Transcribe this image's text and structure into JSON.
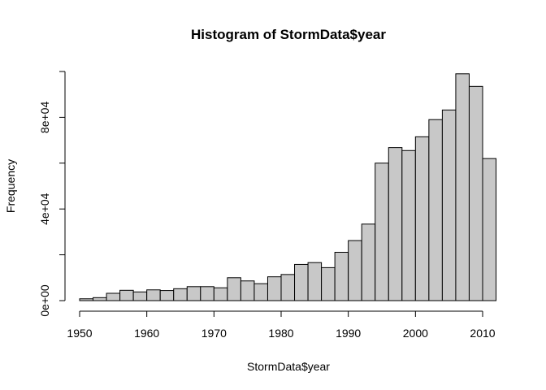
{
  "chart_data": {
    "type": "bar",
    "title": "Histogram of StormData$year",
    "xlabel": "StormData$year",
    "ylabel": "Frequency",
    "bin_width": 2,
    "bin_starts": [
      1950,
      1952,
      1954,
      1956,
      1958,
      1960,
      1962,
      1964,
      1966,
      1968,
      1970,
      1972,
      1974,
      1976,
      1978,
      1980,
      1982,
      1984,
      1986,
      1988,
      1990,
      1992,
      1994,
      1996,
      1998,
      2000,
      2002,
      2004,
      2006,
      2008,
      2010
    ],
    "values": [
      800,
      1300,
      3200,
      4500,
      3800,
      4700,
      4400,
      5200,
      6100,
      6100,
      5600,
      10000,
      8600,
      7400,
      10400,
      11400,
      15800,
      16600,
      14400,
      21100,
      26200,
      33400,
      60000,
      66800,
      65500,
      71500,
      79000,
      83200,
      99000,
      93500,
      62000
    ],
    "xlim": [
      1950,
      2012
    ],
    "ylim": [
      0,
      100000
    ],
    "x_ticks": [
      1950,
      1960,
      1970,
      1980,
      1990,
      2000,
      2010
    ],
    "x_tick_labels": [
      "1950",
      "1960",
      "1970",
      "1980",
      "1990",
      "2000",
      "2010"
    ],
    "y_ticks": [
      0,
      20000,
      40000,
      60000,
      80000,
      100000
    ],
    "y_tick_labels": [
      "0e+00",
      "4e+04",
      "8e+04"
    ],
    "y_labeled_ticks": [
      0,
      40000,
      80000
    ],
    "bar_fill": "#c8c8c8",
    "grid": false,
    "legend": "none"
  }
}
